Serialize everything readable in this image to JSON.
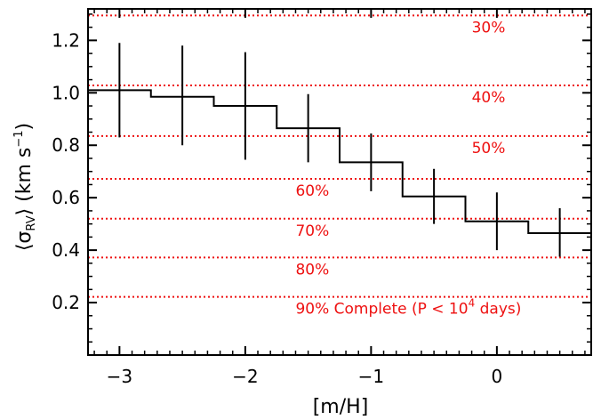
{
  "chart_data": {
    "type": "line",
    "subtype": "step-with-errorbars",
    "title": "",
    "xlabel": "[m/H]",
    "ylabel": {
      "prefix": "⟨σ",
      "subscript": "RV",
      "mid": "⟩ (km s",
      "superscript": "−1",
      "suffix": ")"
    },
    "xlim": [
      -3.25,
      0.75
    ],
    "ylim": [
      0.0,
      1.32
    ],
    "xticks": [
      {
        "value": -3,
        "label": "−3"
      },
      {
        "value": -2,
        "label": "−2"
      },
      {
        "value": -1,
        "label": "−1"
      },
      {
        "value": 0,
        "label": "0"
      }
    ],
    "yticks": [
      {
        "value": 0.2,
        "label": "0.2"
      },
      {
        "value": 0.4,
        "label": "0.4"
      },
      {
        "value": 0.6,
        "label": "0.6"
      },
      {
        "value": 0.8,
        "label": "0.8"
      },
      {
        "value": 1.0,
        "label": "1.0"
      },
      {
        "value": 1.2,
        "label": "1.2"
      }
    ],
    "grid": false,
    "series": [
      {
        "color": "#000000",
        "bin_width": 0.5,
        "points": [
          {
            "x": -3.0,
            "y": 1.01,
            "yerr_low": 0.83,
            "yerr_high": 1.19
          },
          {
            "x": -2.5,
            "y": 0.985,
            "yerr_low": 0.8,
            "yerr_high": 1.18
          },
          {
            "x": -2.0,
            "y": 0.95,
            "yerr_low": 0.745,
            "yerr_high": 1.155
          },
          {
            "x": -1.5,
            "y": 0.865,
            "yerr_low": 0.735,
            "yerr_high": 0.995
          },
          {
            "x": -1.0,
            "y": 0.735,
            "yerr_low": 0.625,
            "yerr_high": 0.845
          },
          {
            "x": -0.5,
            "y": 0.605,
            "yerr_low": 0.5,
            "yerr_high": 0.71
          },
          {
            "x": 0.0,
            "y": 0.51,
            "yerr_low": 0.4,
            "yerr_high": 0.62
          },
          {
            "x": 0.5,
            "y": 0.465,
            "yerr_low": 0.375,
            "yerr_high": 0.56
          }
        ]
      }
    ],
    "reference_lines": {
      "color": "#ee1111",
      "style": "dotted",
      "lines": [
        {
          "y": 1.295,
          "label": "30%",
          "label_x": -0.2,
          "label_y": 1.23
        },
        {
          "y": 1.028,
          "label": "40%",
          "label_x": -0.2,
          "label_y": 0.963
        },
        {
          "y": 0.835,
          "label": "50%",
          "label_x": -0.2,
          "label_y": 0.77
        },
        {
          "y": 0.672,
          "label": "60%",
          "label_x": -1.6,
          "label_y": 0.607
        },
        {
          "y": 0.52,
          "label": "70%",
          "label_x": -1.6,
          "label_y": 0.455
        },
        {
          "y": 0.372,
          "label": "80%",
          "label_x": -1.6,
          "label_y": 0.307
        },
        {
          "y": 0.222,
          "label": "90% Complete (P < 10",
          "label_sup": "4",
          "label_tail": " days)",
          "label_x": -1.6,
          "label_y": 0.157
        }
      ]
    }
  }
}
